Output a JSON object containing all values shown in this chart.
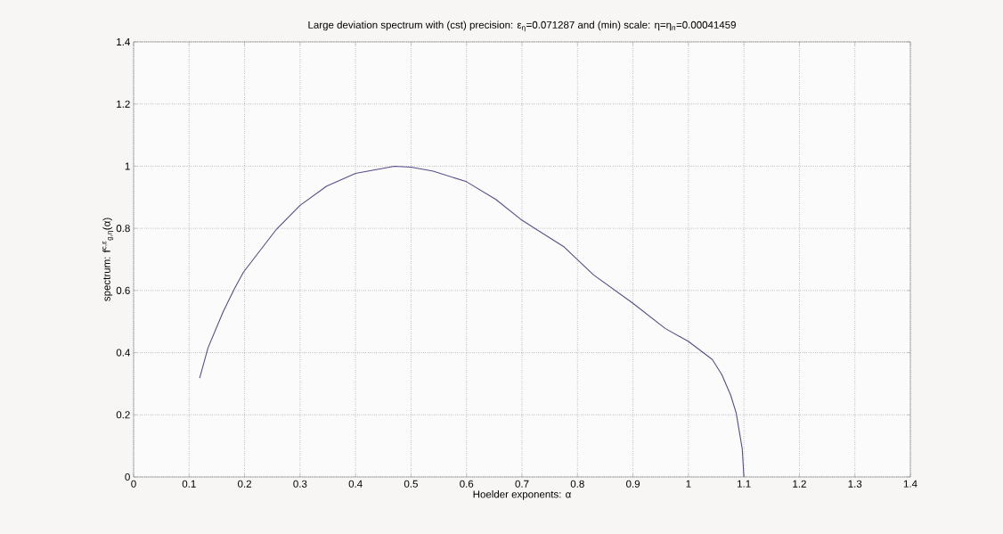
{
  "chart_data": {
    "type": "line",
    "title": "Large deviation spectrum with (cst) precision: ε$_{η}$=0.071287 and (min) scale: η=η$_{n}$=0.00041459",
    "xlabel": "Hoelder exponents: α",
    "ylabel": "spectrum: f$^{c,ε}$$_{g,η}$(α)",
    "x": [
      0.119,
      0.134,
      0.161,
      0.182,
      0.198,
      0.257,
      0.3,
      0.348,
      0.4,
      0.47,
      0.5,
      0.54,
      0.6,
      0.653,
      0.7,
      0.776,
      0.829,
      0.899,
      0.958,
      1.0,
      1.043,
      1.06,
      1.076,
      1.086,
      1.097,
      1.1
    ],
    "series": [
      {
        "color": "#5c4a8a",
        "values": [
          0.318,
          0.415,
          0.53,
          0.607,
          0.659,
          0.796,
          0.874,
          0.936,
          0.977,
          1.0,
          0.997,
          0.984,
          0.95,
          0.893,
          0.826,
          0.74,
          0.65,
          0.56,
          0.478,
          0.436,
          0.378,
          0.33,
          0.264,
          0.206,
          0.09,
          0.0
        ]
      }
    ],
    "xlim": [
      0,
      1.4
    ],
    "ylim": [
      0,
      1.4
    ],
    "xticks": [
      0,
      0.1,
      0.2,
      0.3,
      0.4,
      0.5,
      0.6,
      0.7,
      0.8,
      0.9,
      1,
      1.1,
      1.2,
      1.3,
      1.4
    ],
    "yticks": [
      0,
      0.2,
      0.4,
      0.6,
      0.8,
      1,
      1.2,
      1.4
    ],
    "grid": true
  }
}
